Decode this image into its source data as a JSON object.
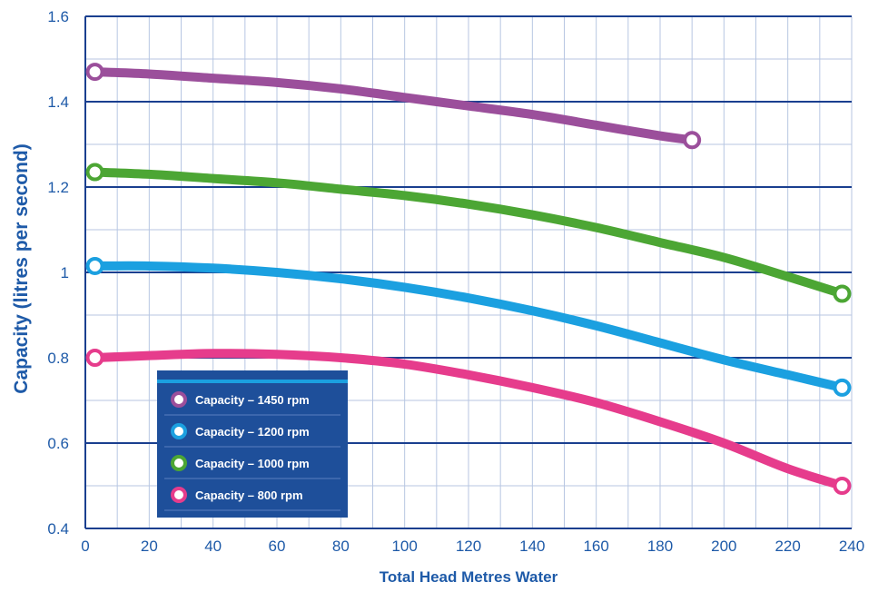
{
  "chart_data": {
    "type": "line",
    "xlabel": "Total Head Metres Water",
    "ylabel": "Capacity (litres per second)",
    "xlim": [
      0,
      240
    ],
    "ylim": [
      0.4,
      1.6
    ],
    "x_ticks": [
      0,
      20,
      40,
      60,
      80,
      100,
      120,
      140,
      160,
      180,
      200,
      220,
      240
    ],
    "x_tick_labels": [
      "0",
      "20",
      "40",
      "60",
      "80",
      "100",
      "120",
      "140",
      "160",
      "180",
      "200",
      "220",
      "240"
    ],
    "y_ticks": [
      0.4,
      0.6,
      0.8,
      1.0,
      1.2,
      1.4,
      1.6
    ],
    "y_tick_labels": [
      "0.4",
      "0.6",
      "0.8",
      "1",
      "1.2",
      "1.4",
      "1.6"
    ],
    "x_minor_gridlines": [
      10,
      30,
      50,
      70,
      90,
      110,
      130,
      150,
      170,
      190,
      210,
      230
    ],
    "y_minor_gridlines": [
      0.5,
      0.7,
      0.9,
      1.1,
      1.3,
      1.5
    ],
    "grid": true,
    "legend_position": "bottom-left",
    "series": [
      {
        "name": "Capacity – 1450 rpm",
        "color": "#9b4f9b",
        "x": [
          3,
          20,
          40,
          60,
          80,
          100,
          120,
          140,
          160,
          180,
          190
        ],
        "y": [
          1.47,
          1.465,
          1.455,
          1.445,
          1.43,
          1.41,
          1.39,
          1.37,
          1.345,
          1.32,
          1.31
        ]
      },
      {
        "name": "Capacity – 1200 rpm",
        "color": "#1ba0e0",
        "x": [
          3,
          20,
          40,
          60,
          80,
          100,
          120,
          140,
          160,
          180,
          200,
          220,
          237
        ],
        "y": [
          1.015,
          1.015,
          1.01,
          1.0,
          0.985,
          0.965,
          0.94,
          0.91,
          0.875,
          0.835,
          0.795,
          0.76,
          0.73
        ]
      },
      {
        "name": "Capacity – 1000 rpm",
        "color": "#4ca634",
        "x": [
          3,
          20,
          40,
          60,
          80,
          100,
          120,
          140,
          160,
          180,
          200,
          220,
          237
        ],
        "y": [
          1.235,
          1.23,
          1.22,
          1.21,
          1.195,
          1.18,
          1.16,
          1.135,
          1.105,
          1.07,
          1.035,
          0.99,
          0.95
        ]
      },
      {
        "name": "Capacity – 800 rpm",
        "color": "#e63c8c",
        "x": [
          3,
          20,
          40,
          60,
          80,
          100,
          120,
          140,
          160,
          180,
          200,
          220,
          237
        ],
        "y": [
          0.8,
          0.805,
          0.81,
          0.808,
          0.8,
          0.785,
          0.76,
          0.73,
          0.695,
          0.65,
          0.6,
          0.54,
          0.5
        ]
      }
    ],
    "legend_items": [
      "Capacity – 1450 rpm",
      "Capacity – 1200 rpm",
      "Capacity – 1000 rpm",
      "Capacity – 800 rpm"
    ],
    "colors": {
      "axis_blue": "#1e5aa8",
      "major_grid": "#1a3f8f",
      "minor_grid": "#b7c6e2",
      "legend_bg": "#1e4f9a"
    }
  }
}
